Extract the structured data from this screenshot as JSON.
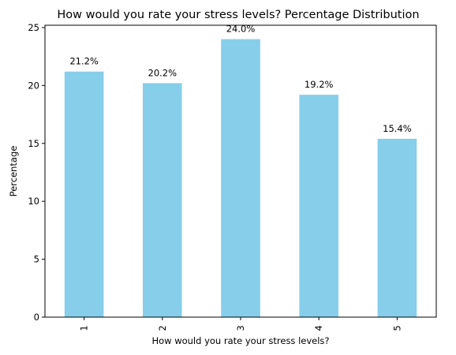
{
  "chart_data": {
    "type": "bar",
    "title": "How would you rate your stress levels? Percentage Distribution",
    "xlabel": "How would you rate your stress levels?",
    "ylabel": "Percentage",
    "categories": [
      "1",
      "2",
      "3",
      "4",
      "5"
    ],
    "values": [
      21.2,
      20.2,
      24.0,
      19.2,
      15.4
    ],
    "data_labels": [
      "21.2%",
      "20.2%",
      "24.0%",
      "19.2%",
      "15.4%"
    ],
    "ylim": [
      0,
      25.2
    ],
    "yticks": [
      0,
      5,
      10,
      15,
      20,
      25
    ],
    "grid": false,
    "legend": "none",
    "bar_color": "#87CEEB",
    "x_tick_rotation": "vertical"
  }
}
